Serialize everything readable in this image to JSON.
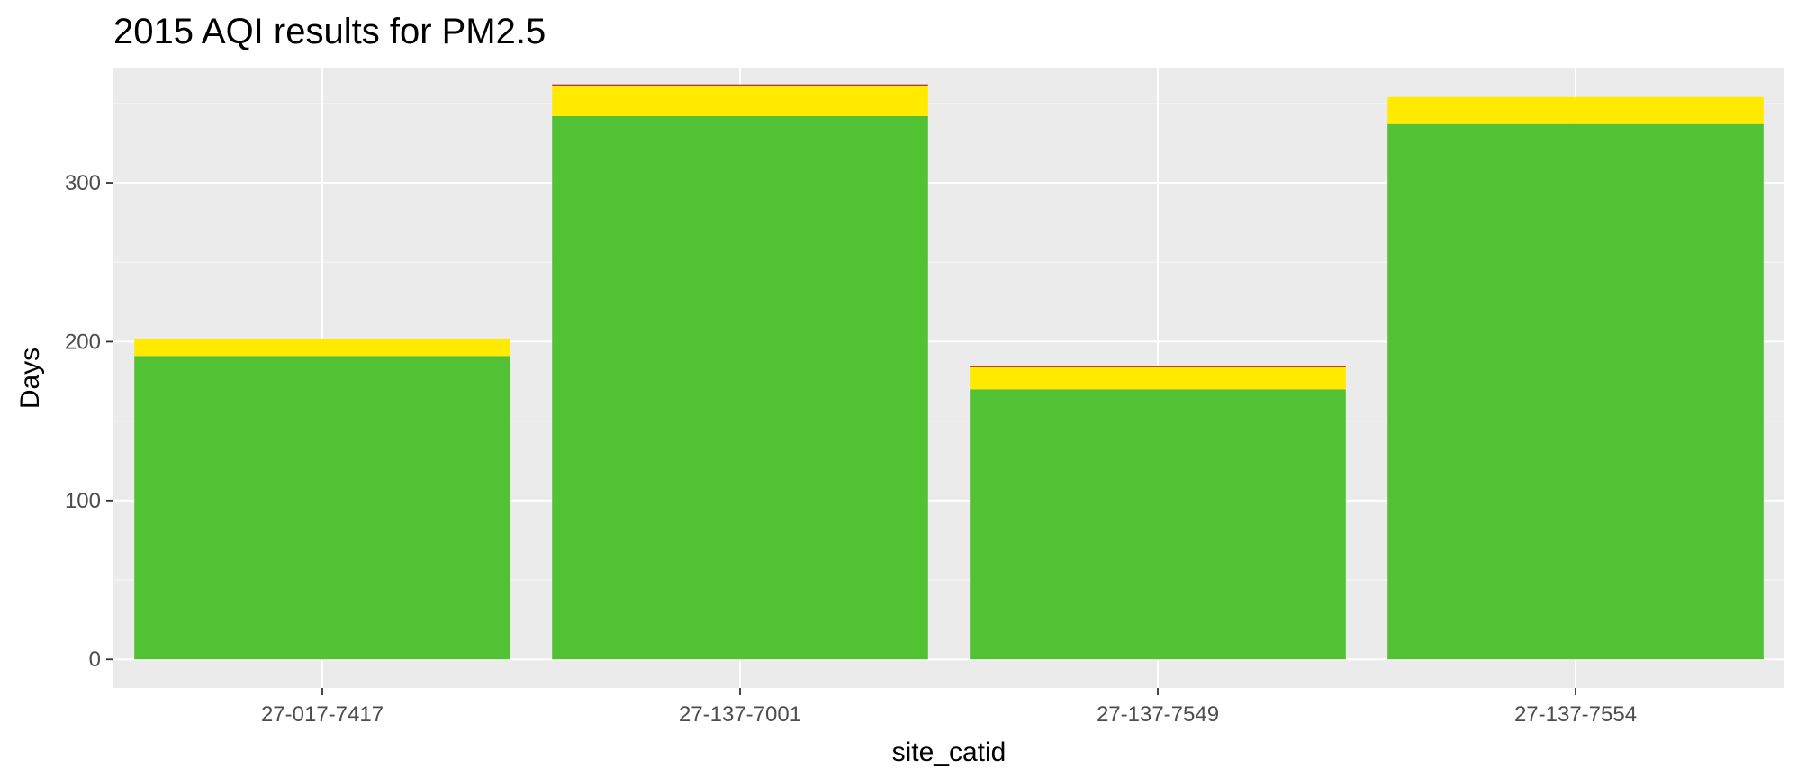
{
  "chart_data": {
    "type": "bar",
    "stacked": true,
    "title": "2015 AQI results for PM2.5",
    "xlabel": "site_catid",
    "ylabel": "Days",
    "ylim": [
      -18,
      372
    ],
    "yticks": [
      0,
      100,
      200,
      300
    ],
    "grid": true,
    "legend": "none",
    "categories": [
      "27-017-7417",
      "27-137-7001",
      "27-137-7549",
      "27-137-7554"
    ],
    "series": [
      {
        "color": "#53c134",
        "values": [
          191,
          342,
          170,
          337
        ]
      },
      {
        "color": "#ffea00",
        "values": [
          11,
          19,
          14,
          17
        ]
      },
      {
        "color": "#c0392b",
        "values": [
          0,
          1,
          0.5,
          0
        ]
      }
    ]
  }
}
